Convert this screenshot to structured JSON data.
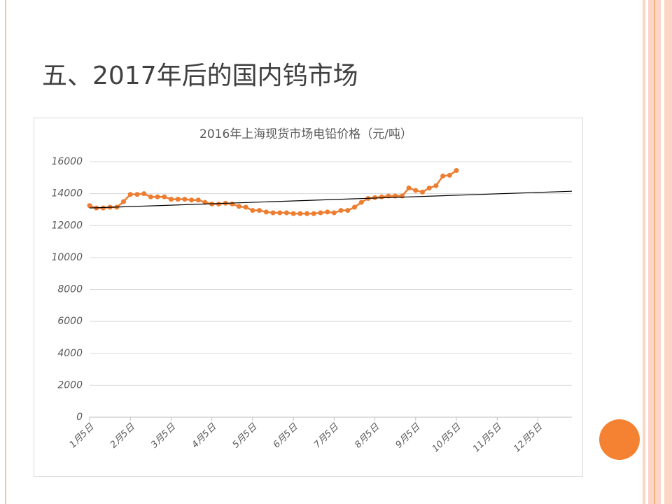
{
  "title": "五、2017年后的国内钨市场",
  "chart_data": {
    "type": "line",
    "title": "2016年上海现货市场电铅价格（元/吨）",
    "categories": [
      "1月5日",
      null,
      null,
      null,
      null,
      null,
      "2月5日",
      null,
      null,
      null,
      null,
      null,
      "3月5日",
      null,
      null,
      null,
      null,
      null,
      "4月5日",
      null,
      null,
      null,
      null,
      null,
      "5月5日",
      null,
      null,
      null,
      null,
      null,
      "6月5日",
      null,
      null,
      null,
      null,
      null,
      "7月5日",
      null,
      null,
      null,
      null,
      null,
      "8月5日",
      null,
      null,
      null,
      null,
      null,
      "9月5日",
      null,
      null,
      null,
      null,
      null,
      "10月5日",
      null,
      null,
      null,
      null,
      null,
      "11月5日",
      null,
      null,
      null,
      null,
      null,
      "12月5日",
      null,
      null,
      null,
      null,
      null
    ],
    "values": [
      13250,
      13100,
      13100,
      13150,
      13150,
      13500,
      13950,
      13950,
      14000,
      13800,
      13800,
      13800,
      13650,
      13650,
      13650,
      13600,
      13600,
      13450,
      13350,
      13350,
      13400,
      13350,
      13200,
      13150,
      12950,
      12950,
      12850,
      12800,
      12800,
      12800,
      12750,
      12750,
      12750,
      12750,
      12800,
      12850,
      12800,
      12950,
      12950,
      13150,
      13450,
      13700,
      13750,
      13800,
      13850,
      13850,
      13850,
      14350,
      14200,
      14100,
      14350,
      14500,
      15100,
      15150,
      15450,
      null,
      null,
      null,
      null,
      null,
      null,
      null,
      null,
      null,
      null,
      null,
      null,
      null,
      null,
      null,
      null,
      null
    ],
    "color": "#ed7d31",
    "trendline": {
      "values": [
        13100,
        14150
      ],
      "color": "#000000"
    },
    "ylim": [
      0,
      16000
    ],
    "yticks": [
      0,
      2000,
      4000,
      6000,
      8000,
      10000,
      12000,
      14000,
      16000
    ],
    "grid": true
  }
}
